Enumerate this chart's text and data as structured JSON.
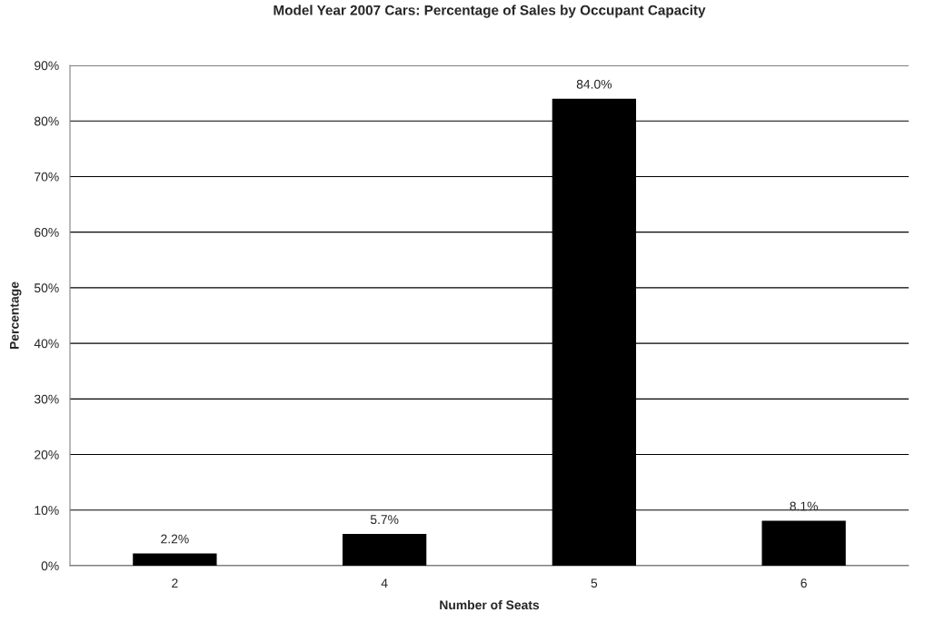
{
  "chart_data": {
    "type": "bar",
    "title": "Model Year 2007 Cars: Percentage of Sales by Occupant Capacity",
    "xlabel": "Number of Seats",
    "ylabel": "Percentage",
    "categories": [
      "2",
      "4",
      "5",
      "6"
    ],
    "series": [
      {
        "color": "#000000",
        "values": [
          2.2,
          5.7,
          84.0,
          8.1
        ],
        "value_labels": [
          "2.2%",
          "5.7%",
          "84.0%",
          "8.1%"
        ]
      }
    ],
    "ylim": [
      0,
      90
    ],
    "yticks": [
      {
        "value": 0,
        "label": "0%"
      },
      {
        "value": 10,
        "label": "10%"
      },
      {
        "value": 20,
        "label": "20%"
      },
      {
        "value": 30,
        "label": "30%"
      },
      {
        "value": 40,
        "label": "40%"
      },
      {
        "value": 50,
        "label": "50%"
      },
      {
        "value": 60,
        "label": "60%"
      },
      {
        "value": 70,
        "label": "70%"
      },
      {
        "value": 80,
        "label": "80%"
      },
      {
        "value": 90,
        "label": "90%"
      }
    ],
    "grid": "y"
  }
}
